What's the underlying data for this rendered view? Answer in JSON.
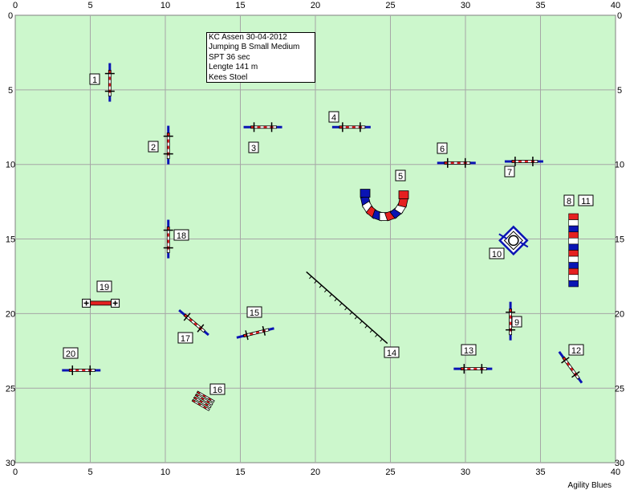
{
  "colors": {
    "field": "#ccf7cc",
    "grid": "#a6a6a6",
    "pole": "#000000",
    "stripe_red": "#e52020",
    "stripe_white": "#ffffff",
    "blue": "#0a14b4"
  },
  "axes": {
    "x_range": [
      0,
      40
    ],
    "y_range": [
      0,
      30
    ],
    "x_ticks": [
      0,
      5,
      10,
      15,
      20,
      25,
      30,
      35,
      40
    ],
    "y_ticks": [
      0,
      5,
      10,
      15,
      20,
      25,
      30
    ]
  },
  "info": {
    "line1": "KC Assen 30-04-2012",
    "line2": "Jumping B Small Medium",
    "line3": "SPT 36 sec",
    "line4": "Lengte 141 m",
    "line5": "Kees Stoel"
  },
  "credit": "Agility Blues",
  "obstacles": [
    {
      "number": "1",
      "type": "jump",
      "x": 6.3,
      "y": 4.5,
      "angle": 90
    },
    {
      "number": "2",
      "type": "jump",
      "x": 10.2,
      "y": 8.7,
      "angle": 90
    },
    {
      "number": "3",
      "type": "jump",
      "x": 16.5,
      "y": 7.5,
      "angle": 0
    },
    {
      "number": "4",
      "type": "jump",
      "x": 22.4,
      "y": 7.5,
      "angle": 0
    },
    {
      "number": "5",
      "type": "tunnel",
      "x": 24.6,
      "y": 12.2
    },
    {
      "number": "6",
      "type": "jump",
      "x": 29.4,
      "y": 9.9,
      "angle": 0
    },
    {
      "number": "7",
      "type": "jump",
      "x": 33.9,
      "y": 9.8,
      "angle": 0
    },
    {
      "number": "8",
      "type": "weave",
      "x": 37.2,
      "y": 15.8
    },
    {
      "number": "9",
      "type": "jump",
      "x": 33.0,
      "y": 20.5,
      "angle": 90
    },
    {
      "number": "10",
      "type": "tyre",
      "x": 33.2,
      "y": 15.1
    },
    {
      "number": "11",
      "type": "weave",
      "x": 37.2,
      "y": 15.8
    },
    {
      "number": "12",
      "type": "jump",
      "x": 37.0,
      "y": 23.6,
      "angle": 54
    },
    {
      "number": "13",
      "type": "jump",
      "x": 30.5,
      "y": 23.7,
      "angle": 0
    },
    {
      "number": "14",
      "type": "dogwalk",
      "x": 22.2,
      "y": 19.5
    },
    {
      "number": "15",
      "type": "jump",
      "x": 16.0,
      "y": 21.3,
      "angle": -14
    },
    {
      "number": "16",
      "type": "broad",
      "x": 12.5,
      "y": 25.9
    },
    {
      "number": "17",
      "type": "jump",
      "x": 11.9,
      "y": 20.6,
      "angle": 40
    },
    {
      "number": "18",
      "type": "jump",
      "x": 10.2,
      "y": 15.0,
      "angle": 90
    },
    {
      "number": "19",
      "type": "panel",
      "x": 5.7,
      "y": 19.3,
      "angle": 0
    },
    {
      "number": "20",
      "type": "jump",
      "x": 4.4,
      "y": 23.8,
      "angle": 0
    }
  ]
}
